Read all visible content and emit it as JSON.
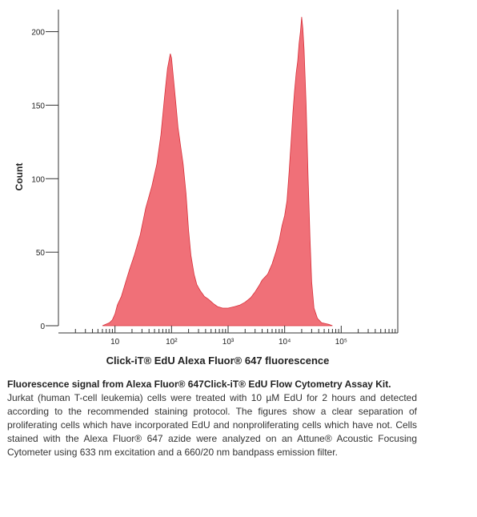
{
  "chart_data": {
    "type": "area",
    "title": "",
    "xlabel": "Click-iT® EdU Alexa Fluor® 647 fluorescence",
    "ylabel": "Count",
    "x_scale": "log",
    "xlim": [
      1,
      1000000
    ],
    "ylim": [
      0,
      215
    ],
    "x_ticks": [
      {
        "value": 10,
        "label": "10"
      },
      {
        "value": 100,
        "label": "10²"
      },
      {
        "value": 1000,
        "label": "10³"
      },
      {
        "value": 10000,
        "label": "10⁴"
      },
      {
        "value": 100000,
        "label": "10⁵"
      }
    ],
    "y_ticks": [
      {
        "value": 0,
        "label": "0"
      },
      {
        "value": 50,
        "label": "50"
      },
      {
        "value": 100,
        "label": "100"
      },
      {
        "value": 150,
        "label": "150"
      },
      {
        "value": 200,
        "label": "200"
      }
    ],
    "grid": false,
    "series": [
      {
        "fill": "#f07078",
        "stroke": "#d8303a",
        "points": [
          [
            6,
            0
          ],
          [
            8,
            2
          ],
          [
            9,
            4
          ],
          [
            10,
            8
          ],
          [
            11,
            14
          ],
          [
            13,
            20
          ],
          [
            15,
            28
          ],
          [
            18,
            38
          ],
          [
            22,
            48
          ],
          [
            28,
            62
          ],
          [
            35,
            80
          ],
          [
            45,
            95
          ],
          [
            55,
            110
          ],
          [
            65,
            130
          ],
          [
            75,
            155
          ],
          [
            85,
            175
          ],
          [
            95,
            185
          ],
          [
            100,
            182
          ],
          [
            110,
            165
          ],
          [
            120,
            150
          ],
          [
            130,
            135
          ],
          [
            145,
            122
          ],
          [
            160,
            110
          ],
          [
            180,
            90
          ],
          [
            200,
            65
          ],
          [
            220,
            48
          ],
          [
            250,
            35
          ],
          [
            280,
            28
          ],
          [
            320,
            24
          ],
          [
            380,
            20
          ],
          [
            450,
            18
          ],
          [
            550,
            15
          ],
          [
            650,
            13
          ],
          [
            800,
            12
          ],
          [
            1000,
            12
          ],
          [
            1300,
            13
          ],
          [
            1600,
            14
          ],
          [
            2000,
            16
          ],
          [
            2500,
            19
          ],
          [
            3000,
            23
          ],
          [
            3500,
            27
          ],
          [
            4000,
            31
          ],
          [
            5000,
            35
          ],
          [
            6000,
            42
          ],
          [
            7000,
            50
          ],
          [
            8000,
            58
          ],
          [
            9000,
            68
          ],
          [
            10000,
            75
          ],
          [
            11000,
            85
          ],
          [
            12000,
            105
          ],
          [
            13000,
            125
          ],
          [
            14000,
            145
          ],
          [
            15000,
            160
          ],
          [
            16000,
            172
          ],
          [
            17000,
            180
          ],
          [
            18000,
            192
          ],
          [
            19000,
            200
          ],
          [
            20000,
            210
          ],
          [
            21000,
            202
          ],
          [
            22000,
            188
          ],
          [
            24000,
            150
          ],
          [
            26000,
            100
          ],
          [
            28000,
            60
          ],
          [
            30000,
            30
          ],
          [
            33000,
            12
          ],
          [
            38000,
            5
          ],
          [
            45000,
            2
          ],
          [
            60000,
            1
          ],
          [
            70000,
            0
          ]
        ]
      }
    ]
  },
  "caption": {
    "title": "Fluorescence signal from Alexa Fluor® 647Click-iT® EdU Flow Cytometry Assay Kit.",
    "body": "Jurkat (human T-cell leukemia) cells were treated with 10 µM EdU for 2 hours and detected according to the recommended staining protocol. The figures show a clear separation of proliferating cells which have incorporated EdU and nonproliferating cells which have not. Cells stained with the Alexa Fluor® 647 azide were analyzed on an Attune® Acoustic Focusing Cytometer using 633 nm excitation and a 660/20 nm bandpass emission filter."
  }
}
